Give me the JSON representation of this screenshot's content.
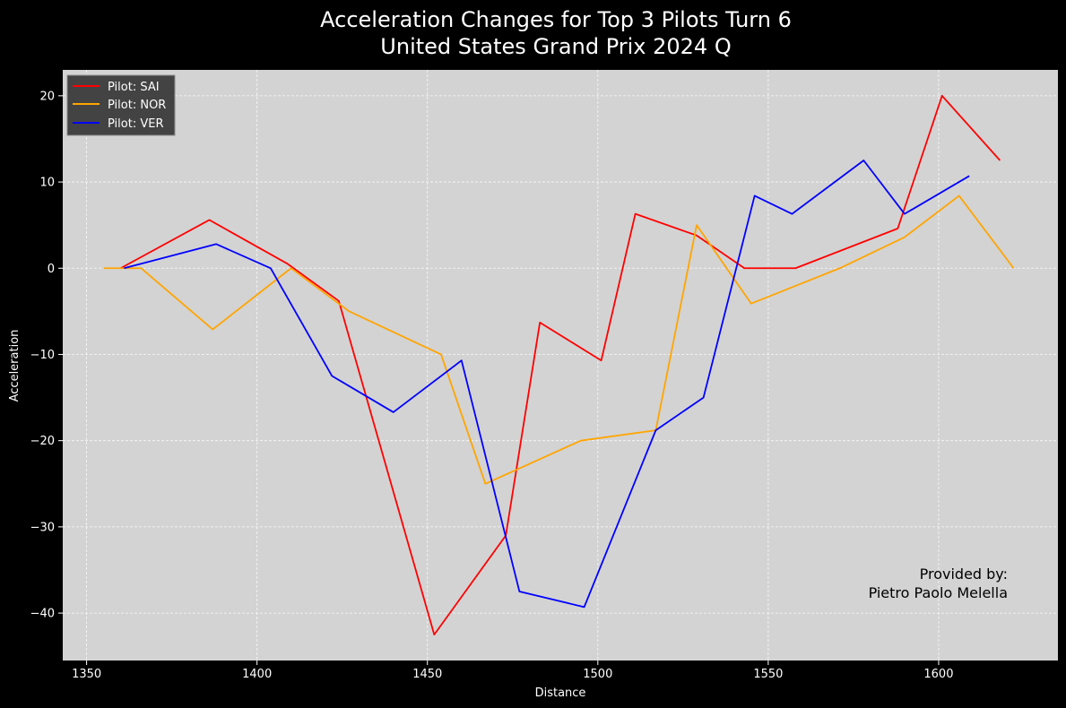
{
  "chart_data": {
    "type": "line",
    "title_line1": "Acceleration Changes for Top 3 Pilots Turn 6",
    "title_line2": "United States Grand Prix 2024 Q",
    "xlabel": "Distance",
    "ylabel": "Acceleration",
    "xlim": [
      1343,
      1635
    ],
    "ylim": [
      -45.5,
      23.0
    ],
    "xticks": [
      1350,
      1400,
      1450,
      1500,
      1550,
      1600
    ],
    "yticks": [
      20,
      10,
      0,
      -10,
      -20,
      -30,
      -40
    ],
    "ytick_labels": [
      "20",
      "10",
      "0",
      "−10",
      "−20",
      "−30",
      "−40"
    ],
    "grid": true,
    "background": "#d3d3d3",
    "legend_position": "top-left",
    "annotation_line1": "Provided by:",
    "annotation_line2": "Pietro Paolo Melella",
    "series": [
      {
        "name": "Pilot: SAI",
        "color": "#ff0000",
        "x": [
          1360,
          1386,
          1409,
          1424,
          1452,
          1473,
          1483,
          1501,
          1511,
          1529,
          1543,
          1558,
          1588,
          1601,
          1618
        ],
        "y": [
          0,
          5.6,
          0.5,
          -3.8,
          -42.5,
          -31,
          -6.3,
          -10.7,
          6.3,
          3.8,
          0,
          0,
          4.6,
          20,
          12.5
        ]
      },
      {
        "name": "Pilot: NOR",
        "color": "#ffa500",
        "x": [
          1355,
          1366,
          1387,
          1410,
          1427,
          1454,
          1467,
          1495,
          1517,
          1529,
          1545,
          1571,
          1590,
          1606,
          1622
        ],
        "y": [
          0,
          0,
          -7.1,
          0,
          -5,
          -10,
          -25,
          -20,
          -18.8,
          5,
          -4.1,
          0,
          3.6,
          8.4,
          0
        ]
      },
      {
        "name": "Pilot: VER",
        "color": "#0000ff",
        "x": [
          1361,
          1388,
          1404,
          1422,
          1440,
          1460,
          1477,
          1496,
          1517,
          1531,
          1546,
          1557,
          1578,
          1590,
          1609
        ],
        "y": [
          0,
          2.8,
          0,
          -12.5,
          -16.7,
          -10.7,
          -37.5,
          -39.3,
          -18.8,
          -15,
          8.4,
          6.3,
          12.5,
          6.3,
          10.7
        ]
      }
    ]
  }
}
